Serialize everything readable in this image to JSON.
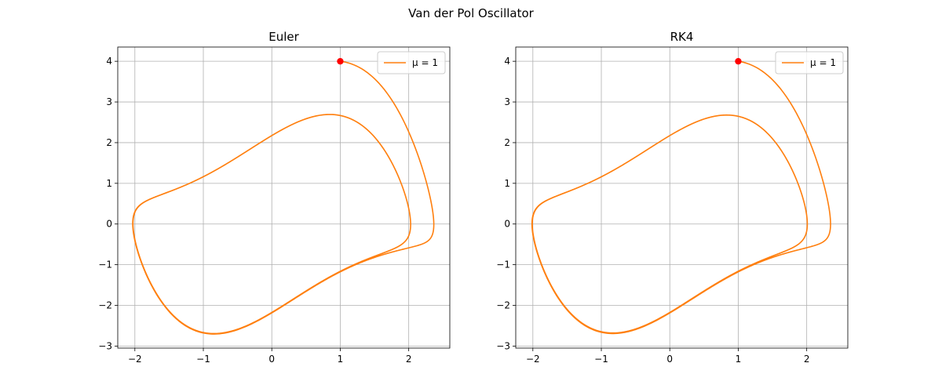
{
  "figure": {
    "suptitle": "Van der Pol Oscillator"
  },
  "chart_data": [
    {
      "type": "line",
      "title": "Euler",
      "xlabel": "",
      "ylabel": "",
      "xlim": [
        -2.25,
        2.6
      ],
      "ylim": [
        -3.05,
        4.35
      ],
      "xticks": [
        -2,
        -1,
        0,
        1,
        2
      ],
      "yticks": [
        -3,
        -2,
        -1,
        0,
        1,
        2,
        3,
        4
      ],
      "xtick_labels": [
        "−2",
        "−1",
        "0",
        "1",
        "2"
      ],
      "ytick_labels": [
        "−3",
        "−2",
        "−1",
        "0",
        "1",
        "2",
        "3",
        "4"
      ],
      "grid": true,
      "legend_position": "upper right",
      "series": [
        {
          "name": "μ = 1",
          "color": "#ff7f0e",
          "mu": 1,
          "initial_condition": [
            1,
            4
          ],
          "method": "Euler"
        }
      ],
      "start_point": {
        "x": 1,
        "y": 4,
        "color": "#ff0000"
      }
    },
    {
      "type": "line",
      "title": "RK4",
      "xlabel": "",
      "ylabel": "",
      "xlim": [
        -2.25,
        2.6
      ],
      "ylim": [
        -3.05,
        4.35
      ],
      "xticks": [
        -2,
        -1,
        0,
        1,
        2
      ],
      "yticks": [
        -3,
        -2,
        -1,
        0,
        1,
        2,
        3,
        4
      ],
      "xtick_labels": [
        "−2",
        "−1",
        "0",
        "1",
        "2"
      ],
      "ytick_labels": [
        "−3",
        "−2",
        "−1",
        "0",
        "1",
        "2",
        "3",
        "4"
      ],
      "grid": true,
      "legend_position": "upper right",
      "series": [
        {
          "name": "μ = 1",
          "color": "#ff7f0e",
          "mu": 1,
          "initial_condition": [
            1,
            4
          ],
          "method": "RK4"
        }
      ],
      "start_point": {
        "x": 1,
        "y": 4,
        "color": "#ff0000"
      }
    }
  ]
}
